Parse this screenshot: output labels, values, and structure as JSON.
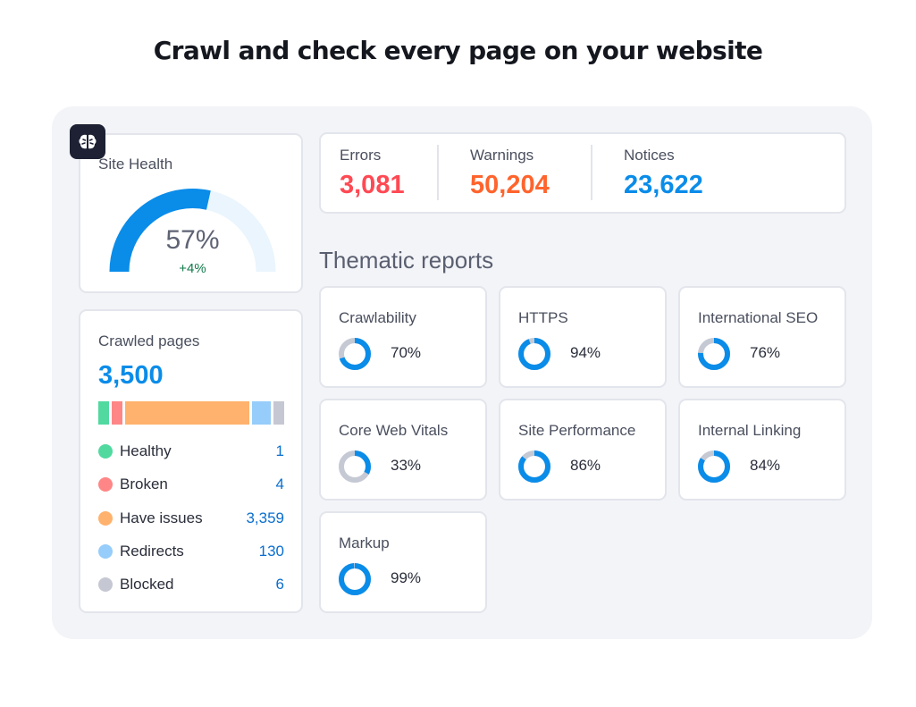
{
  "headline": "Crawl and check every page on your website",
  "colors": {
    "accent_blue": "#0a8ce9",
    "error_red": "#ff4953",
    "warning_orange": "#ff642d",
    "notice_blue": "#0a8ce9",
    "donut_track": "#c5c9d4"
  },
  "badge": {
    "icon": "brain-icon"
  },
  "site_health": {
    "label": "Site Health",
    "value": "57%",
    "delta": "+4%",
    "fraction": 0.57
  },
  "crawled_pages": {
    "label": "Crawled pages",
    "total": "3,500",
    "items": [
      {
        "name": "Healthy",
        "count": "1",
        "value": 1,
        "color": "#51d9a0"
      },
      {
        "name": "Broken",
        "count": "4",
        "value": 4,
        "color": "#ff8686"
      },
      {
        "name": "Have issues",
        "count": "3,359",
        "value": 3359,
        "color": "#ffb26d"
      },
      {
        "name": "Redirects",
        "count": "130",
        "value": 130,
        "color": "#96cdfa"
      },
      {
        "name": "Blocked",
        "count": "6",
        "value": 6,
        "color": "#c5c8d2"
      }
    ]
  },
  "issues": {
    "errors": {
      "label": "Errors",
      "value": "3,081",
      "color": "#ff4953"
    },
    "warnings": {
      "label": "Warnings",
      "value": "50,204",
      "color": "#ff642d"
    },
    "notices": {
      "label": "Notices",
      "value": "23,622",
      "color": "#0a8ce9"
    }
  },
  "thematic": {
    "title": "Thematic reports",
    "reports": [
      {
        "name": "Crawlability",
        "pct": "70%",
        "fraction": 0.7
      },
      {
        "name": "HTTPS",
        "pct": "94%",
        "fraction": 0.94
      },
      {
        "name": "International SEO",
        "pct": "76%",
        "fraction": 0.76
      },
      {
        "name": "Core Web Vitals",
        "pct": "33%",
        "fraction": 0.33
      },
      {
        "name": "Site Performance",
        "pct": "86%",
        "fraction": 0.86
      },
      {
        "name": "Internal Linking",
        "pct": "84%",
        "fraction": 0.84
      },
      {
        "name": "Markup",
        "pct": "99%",
        "fraction": 0.99
      }
    ]
  }
}
